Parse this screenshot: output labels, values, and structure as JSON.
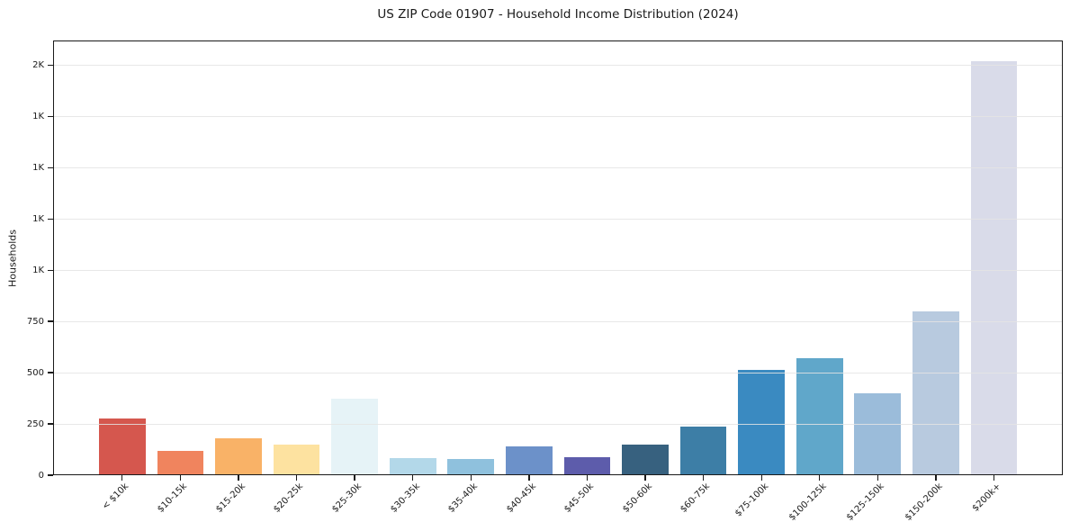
{
  "chart_data": {
    "type": "bar",
    "title": "US ZIP Code 01907 - Household Income Distribution (2024)",
    "xlabel": "",
    "ylabel": "Households",
    "ylim": [
      0,
      2120
    ],
    "grid": true,
    "grid_color": "#e4e4e4",
    "legend": false,
    "background": "#ffffff",
    "axis_color": "#1a1a1a",
    "text_color": "#1a1a1a",
    "categories": [
      "< $10k",
      "$10-15k",
      "$15-20k",
      "$20-25k",
      "$25-30k",
      "$30-35k",
      "$35-40k",
      "$40-45k",
      "$45-50k",
      "$50-60k",
      "$60-75k",
      "$75-100k",
      "$100-125k",
      "$125-150k",
      "$150-200k",
      "$200k+"
    ],
    "values": [
      275,
      120,
      180,
      150,
      375,
      82,
      78,
      140,
      86,
      150,
      237,
      515,
      570,
      400,
      800,
      2020
    ],
    "bar_colors": [
      "#d5574e",
      "#f0845e",
      "#f9b267",
      "#fde2a0",
      "#e6f3f7",
      "#b3d8e9",
      "#8fc1dd",
      "#6c91c9",
      "#5d5cab",
      "#37617f",
      "#3d7ea6",
      "#3a8ac1",
      "#60a7ca",
      "#9bbcda",
      "#b8cadf",
      "#d9dbe9"
    ],
    "y_ticks": [
      {
        "value": 0,
        "label": "0"
      },
      {
        "value": 250,
        "label": "250"
      },
      {
        "value": 500,
        "label": "500"
      },
      {
        "value": 750,
        "label": "750"
      },
      {
        "value": 1000,
        "label": "1K"
      },
      {
        "value": 1250,
        "label": "1K"
      },
      {
        "value": 1500,
        "label": "1K"
      },
      {
        "value": 1750,
        "label": "1K"
      },
      {
        "value": 2000,
        "label": "2K"
      }
    ]
  }
}
